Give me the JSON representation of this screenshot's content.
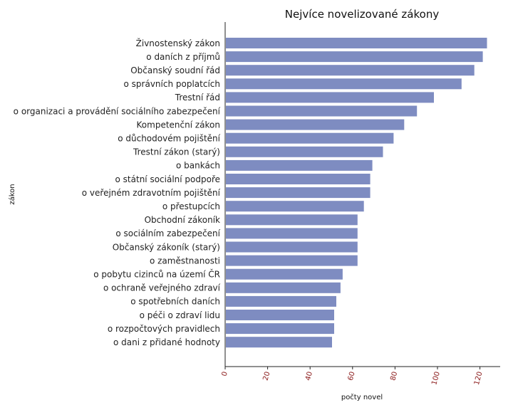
{
  "chart_data": {
    "type": "bar",
    "orientation": "horizontal",
    "title": "Nejvíce novelizované zákony",
    "xlabel": "počty novel",
    "ylabel": "zákon",
    "categories": [
      "Živnostenský zákon",
      "o daních z příjmů",
      "Občanský soudní řád",
      "o správních poplatcích",
      "Trestní řád",
      "o organizaci a provádění sociálního zabezpečení",
      "Kompetenční zákon",
      "o důchodovém pojištění",
      "Trestní zákon (starý)",
      "o bankách",
      "o státní sociální podpoře",
      "o veřejném zdravotním pojištění",
      "o přestupcích",
      "Obchodní zákoník",
      "o sociálním zabezpečení",
      "Občanský zákoník (starý)",
      "o zaměstnanosti",
      "o pobytu cizinců na území ČR",
      "o ochraně veřejného zdraví",
      "o spotřebních daních",
      "o péči o zdraví lidu",
      "o rozpočtových pravidlech",
      "o dani z přidané hodnoty"
    ],
    "values": [
      123,
      121,
      117,
      111,
      98,
      90,
      84,
      79,
      74,
      69,
      68,
      68,
      65,
      62,
      62,
      62,
      62,
      55,
      54,
      52,
      51,
      51,
      50
    ],
    "xlim": [
      0,
      130
    ],
    "xticks": [
      "0",
      "20",
      "40",
      "60",
      "80",
      "100",
      "120"
    ],
    "grid": false,
    "legend": false,
    "bar_color": "#7e8cc1",
    "tick_label_color": "#8b1a1a",
    "axis_color": "#222222"
  }
}
